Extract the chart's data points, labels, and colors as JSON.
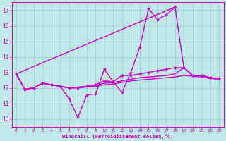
{
  "background_color": "#c0e8e8",
  "grid_color": "#a0cccc",
  "line_color": "#cc00cc",
  "xlabel": "Windchill (Refroidissement éolien,°C)",
  "xlim": [
    -0.5,
    23.5
  ],
  "ylim": [
    9.5,
    17.5
  ],
  "yticks": [
    10,
    11,
    12,
    13,
    14,
    15,
    16,
    17
  ],
  "xticks": [
    0,
    1,
    2,
    3,
    4,
    5,
    6,
    7,
    8,
    9,
    10,
    11,
    12,
    13,
    14,
    15,
    16,
    17,
    18,
    19,
    20,
    21,
    22,
    23
  ],
  "series": [
    {
      "x": [
        0,
        1,
        2,
        3,
        4,
        5,
        6,
        7,
        8,
        9,
        10,
        11,
        12,
        13,
        14,
        15,
        16,
        17,
        18,
        19,
        20,
        21,
        22,
        23
      ],
      "y": [
        12.9,
        11.9,
        12.0,
        12.3,
        12.2,
        12.1,
        11.3,
        10.1,
        11.55,
        11.6,
        13.2,
        12.4,
        11.7,
        13.0,
        14.6,
        17.1,
        16.4,
        16.7,
        17.2,
        13.3,
        12.8,
        12.8,
        12.65,
        12.6
      ],
      "marker": true,
      "linewidth": 1.0
    },
    {
      "x": [
        0,
        18
      ],
      "y": [
        12.9,
        17.2
      ],
      "marker": false,
      "linewidth": 1.0
    },
    {
      "x": [
        0,
        1,
        2,
        3,
        4,
        5,
        6,
        7,
        8,
        9,
        10,
        11,
        12,
        13,
        14,
        15,
        16,
        17,
        18,
        19,
        20,
        21,
        22,
        23
      ],
      "y": [
        12.9,
        11.9,
        12.0,
        12.3,
        12.2,
        12.1,
        12.0,
        12.0,
        12.1,
        12.2,
        12.45,
        12.4,
        12.8,
        12.8,
        12.9,
        13.0,
        13.1,
        13.2,
        13.3,
        13.3,
        12.8,
        12.8,
        12.65,
        12.6
      ],
      "marker": true,
      "linewidth": 1.0
    },
    {
      "x": [
        0,
        1,
        2,
        3,
        4,
        5,
        6,
        7,
        8,
        9,
        10,
        11,
        12,
        13,
        14,
        15,
        16,
        17,
        18,
        19,
        20,
        21,
        22,
        23
      ],
      "y": [
        12.9,
        11.9,
        12.0,
        12.3,
        12.2,
        12.1,
        12.0,
        12.05,
        12.1,
        12.15,
        12.3,
        12.35,
        12.45,
        12.55,
        12.65,
        12.7,
        12.75,
        12.8,
        12.9,
        13.3,
        12.8,
        12.8,
        12.65,
        12.6
      ],
      "marker": false,
      "linewidth": 1.0
    },
    {
      "x": [
        0,
        1,
        2,
        3,
        4,
        5,
        6,
        7,
        8,
        9,
        10,
        11,
        12,
        13,
        14,
        15,
        16,
        17,
        18,
        19,
        20,
        21,
        22,
        23
      ],
      "y": [
        12.9,
        11.9,
        12.0,
        12.3,
        12.2,
        12.1,
        12.0,
        12.0,
        12.05,
        12.1,
        12.2,
        12.25,
        12.35,
        12.45,
        12.5,
        12.55,
        12.6,
        12.65,
        12.7,
        12.8,
        12.75,
        12.7,
        12.6,
        12.55
      ],
      "marker": false,
      "linewidth": 1.0
    }
  ]
}
